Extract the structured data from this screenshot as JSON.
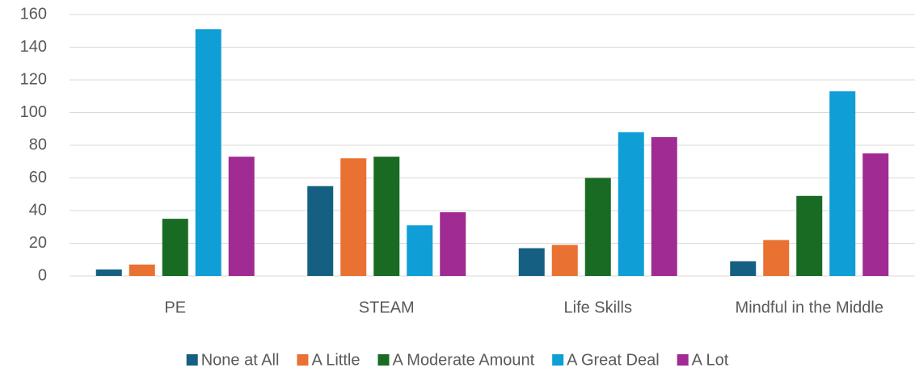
{
  "chart_data": {
    "type": "bar",
    "categories": [
      "PE",
      "STEAM",
      "Life Skills",
      "Mindful in the Middle"
    ],
    "series": [
      {
        "name": "None at All",
        "color": "#156082",
        "values": [
          4,
          55,
          17,
          9
        ]
      },
      {
        "name": "A Little",
        "color": "#e97132",
        "values": [
          7,
          72,
          19,
          22
        ]
      },
      {
        "name": "A Moderate Amount",
        "color": "#196b24",
        "values": [
          35,
          73,
          60,
          49
        ]
      },
      {
        "name": "A Great Deal",
        "color": "#0f9ed5",
        "values": [
          151,
          31,
          88,
          113
        ]
      },
      {
        "name": "A Lot",
        "color": "#a02b93",
        "values": [
          73,
          39,
          85,
          75
        ]
      }
    ],
    "ylim": [
      0,
      160
    ],
    "yticks": [
      0,
      20,
      40,
      60,
      80,
      100,
      120,
      140,
      160
    ],
    "grid": true,
    "legend": "bottom"
  }
}
